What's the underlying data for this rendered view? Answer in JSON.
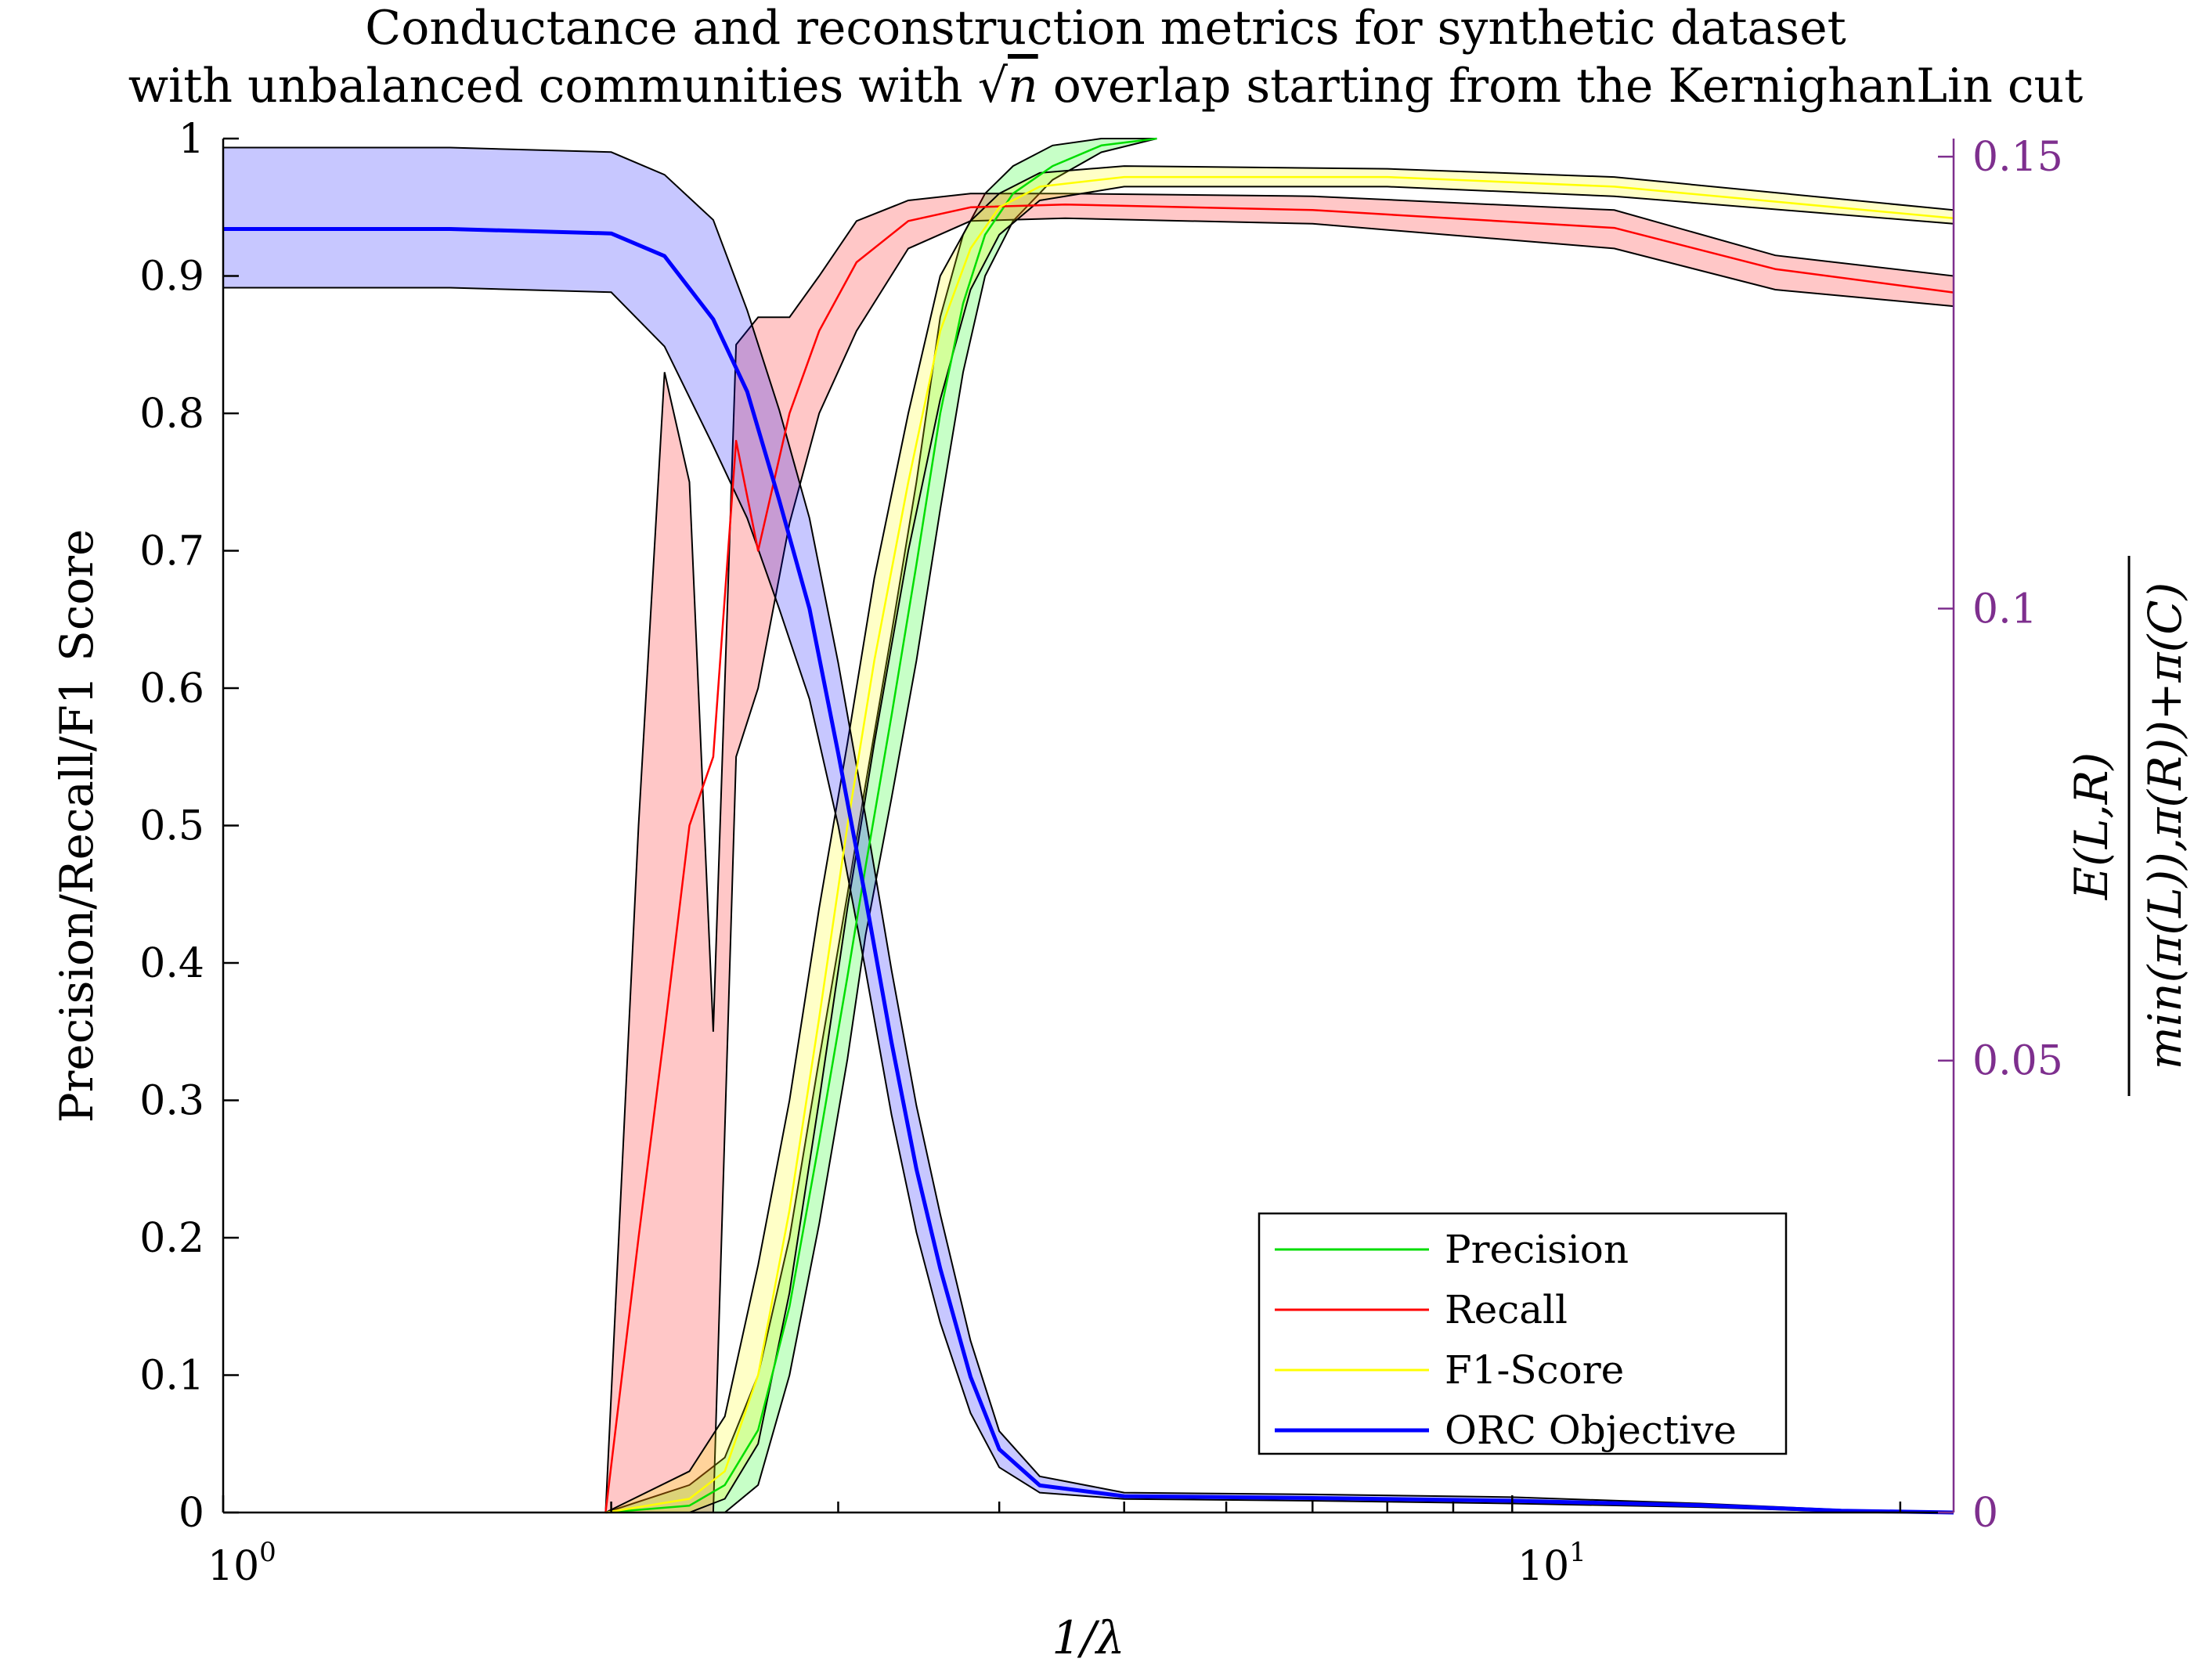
{
  "chart_data": {
    "type": "line",
    "title_line1": "Conductance and reconstruction metrics for synthetic dataset",
    "title_line2_before": "with unbalanced communities with ",
    "title_sqrt_symbol": "√",
    "title_sqrt_var": "n",
    "title_line2_after": " overlap starting from the KernighanLin cut",
    "xlabel": "1/λ",
    "ylabel_left": "Precision/Recall/F1 Score",
    "ylabel_right_numerator": "E(L,R)",
    "ylabel_right_denominator": "min(π(L)),π(R))+π(C)",
    "x_scale": "log",
    "xlim": [
      1,
      22
    ],
    "ylim_left": [
      0,
      1
    ],
    "ylim_right": [
      0,
      0.152
    ],
    "x_ticks": [
      {
        "base": "10",
        "exp": "0",
        "value": 1
      },
      {
        "base": "10",
        "exp": "1",
        "value": 10
      }
    ],
    "y_ticks_left": [
      "0",
      "0.1",
      "0.2",
      "0.3",
      "0.4",
      "0.5",
      "0.6",
      "0.7",
      "0.8",
      "0.9",
      "1"
    ],
    "y_ticks_right": [
      "0",
      "0.05",
      "0.1",
      "0.15"
    ],
    "legend_position": "bottom-right",
    "grid": false,
    "series": [
      {
        "name": "Precision",
        "color": "#00dd00",
        "band_color": "#00ff00",
        "axis": "left",
        "x": [
          1.98,
          2.3,
          2.45,
          2.6,
          2.75,
          2.9,
          3.05,
          3.15,
          3.3,
          3.45,
          3.6,
          3.75,
          3.9,
          4.1,
          4.4,
          4.8,
          5.3
        ],
        "mean": [
          0.0,
          0.005,
          0.02,
          0.06,
          0.15,
          0.27,
          0.39,
          0.47,
          0.58,
          0.69,
          0.8,
          0.88,
          0.93,
          0.96,
          0.98,
          0.995,
          1.0
        ],
        "lower": [
          0.0,
          0.0,
          0.0,
          0.02,
          0.1,
          0.21,
          0.33,
          0.42,
          0.52,
          0.62,
          0.73,
          0.83,
          0.9,
          0.94,
          0.97,
          0.99,
          1.0
        ],
        "upper": [
          0.0,
          0.02,
          0.04,
          0.1,
          0.2,
          0.33,
          0.45,
          0.53,
          0.64,
          0.75,
          0.87,
          0.93,
          0.96,
          0.98,
          0.995,
          1.0,
          1.0
        ]
      },
      {
        "name": "Recall",
        "color": "#ff0000",
        "band_color": "#ff0000",
        "axis": "left",
        "x": [
          1.98,
          2.1,
          2.2,
          2.3,
          2.4,
          2.5,
          2.6,
          2.75,
          2.9,
          3.1,
          3.4,
          3.8,
          4.5,
          7.0,
          12.0,
          16.0,
          22.0
        ],
        "mean": [
          0.0,
          0.2,
          0.35,
          0.5,
          0.55,
          0.78,
          0.7,
          0.8,
          0.86,
          0.91,
          0.94,
          0.95,
          0.952,
          0.948,
          0.935,
          0.905,
          0.888
        ],
        "lower": [
          0.0,
          0.0,
          0.0,
          0.0,
          0.0,
          0.55,
          0.6,
          0.72,
          0.8,
          0.86,
          0.92,
          0.94,
          0.942,
          0.938,
          0.92,
          0.89,
          0.878
        ],
        "upper": [
          0.0,
          0.5,
          0.83,
          0.75,
          0.35,
          0.85,
          0.87,
          0.87,
          0.9,
          0.94,
          0.955,
          0.96,
          0.96,
          0.958,
          0.948,
          0.915,
          0.9
        ]
      },
      {
        "name": "F1-Score",
        "color": "#ffff00",
        "band_color": "#ffff00",
        "axis": "left",
        "x": [
          1.98,
          2.3,
          2.45,
          2.6,
          2.75,
          2.9,
          3.05,
          3.2,
          3.4,
          3.6,
          3.8,
          4.0,
          4.3,
          5.0,
          8.0,
          12.0,
          22.0
        ],
        "mean": [
          0.0,
          0.01,
          0.03,
          0.1,
          0.22,
          0.36,
          0.5,
          0.62,
          0.75,
          0.86,
          0.92,
          0.95,
          0.965,
          0.972,
          0.972,
          0.965,
          0.942
        ],
        "lower": [
          0.0,
          0.0,
          0.01,
          0.05,
          0.16,
          0.3,
          0.44,
          0.56,
          0.7,
          0.81,
          0.89,
          0.93,
          0.955,
          0.965,
          0.965,
          0.958,
          0.938
        ],
        "upper": [
          0.0,
          0.03,
          0.07,
          0.18,
          0.3,
          0.44,
          0.56,
          0.68,
          0.8,
          0.9,
          0.94,
          0.96,
          0.975,
          0.98,
          0.978,
          0.972,
          0.948
        ]
      },
      {
        "name": "ORC Objective",
        "color": "#0000ff",
        "band_color": "#0000ff",
        "axis": "right",
        "x": [
          1.0,
          1.5,
          2.0,
          2.2,
          2.4,
          2.55,
          2.7,
          2.85,
          3.0,
          3.15,
          3.3,
          3.45,
          3.6,
          3.8,
          4.0,
          4.3,
          5.0,
          7.0,
          10.0,
          14.0,
          18.0,
          22.0
        ],
        "mean": [
          0.142,
          0.142,
          0.1415,
          0.139,
          0.132,
          0.124,
          0.112,
          0.1,
          0.084,
          0.068,
          0.052,
          0.038,
          0.027,
          0.015,
          0.007,
          0.003,
          0.0018,
          0.0016,
          0.0013,
          0.0008,
          0.0002,
          0.0
        ],
        "lower": [
          0.1355,
          0.1355,
          0.135,
          0.129,
          0.118,
          0.11,
          0.1,
          0.09,
          0.076,
          0.06,
          0.044,
          0.031,
          0.021,
          0.011,
          0.005,
          0.0022,
          0.0015,
          0.0013,
          0.001,
          0.0006,
          0.0001,
          0.0
        ],
        "upper": [
          0.151,
          0.151,
          0.1505,
          0.148,
          0.143,
          0.133,
          0.122,
          0.11,
          0.094,
          0.077,
          0.06,
          0.045,
          0.033,
          0.019,
          0.009,
          0.004,
          0.0022,
          0.002,
          0.0017,
          0.001,
          0.0003,
          0.0
        ]
      }
    ]
  }
}
